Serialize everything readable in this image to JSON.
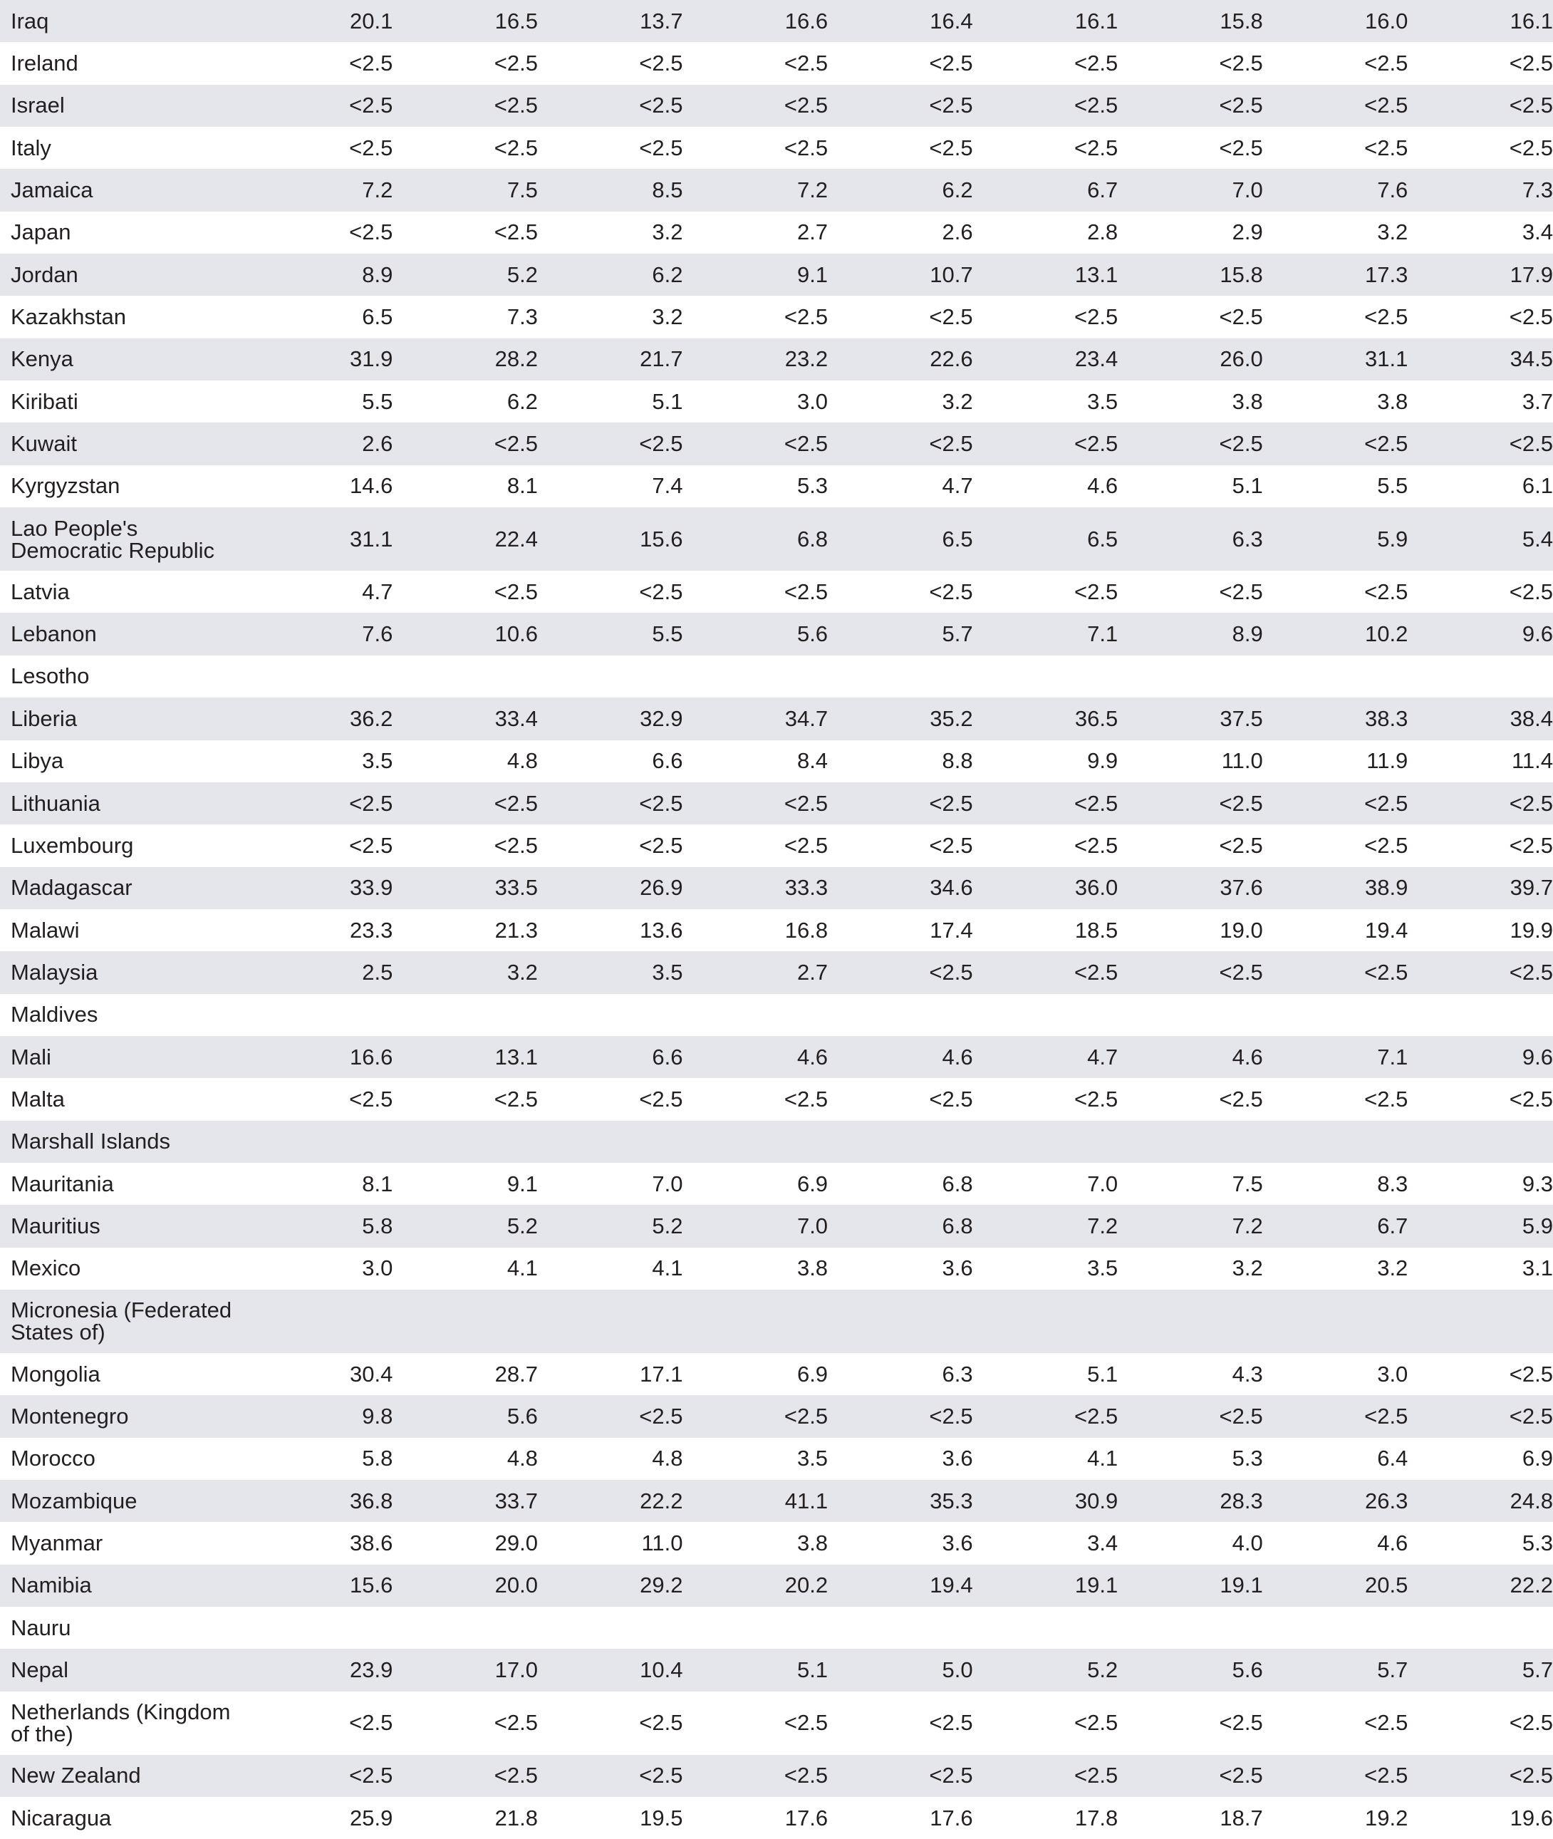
{
  "table": {
    "rows": [
      {
        "country": "Iraq",
        "values": [
          "20.1",
          "16.5",
          "13.7",
          "16.6",
          "16.4",
          "16.1",
          "15.8",
          "16.0",
          "16.1"
        ]
      },
      {
        "country": "Ireland",
        "values": [
          "<2.5",
          "<2.5",
          "<2.5",
          "<2.5",
          "<2.5",
          "<2.5",
          "<2.5",
          "<2.5",
          "<2.5"
        ]
      },
      {
        "country": "Israel",
        "values": [
          "<2.5",
          "<2.5",
          "<2.5",
          "<2.5",
          "<2.5",
          "<2.5",
          "<2.5",
          "<2.5",
          "<2.5"
        ]
      },
      {
        "country": "Italy",
        "values": [
          "<2.5",
          "<2.5",
          "<2.5",
          "<2.5",
          "<2.5",
          "<2.5",
          "<2.5",
          "<2.5",
          "<2.5"
        ]
      },
      {
        "country": "Jamaica",
        "values": [
          "7.2",
          "7.5",
          "8.5",
          "7.2",
          "6.2",
          "6.7",
          "7.0",
          "7.6",
          "7.3"
        ]
      },
      {
        "country": "Japan",
        "values": [
          "<2.5",
          "<2.5",
          "3.2",
          "2.7",
          "2.6",
          "2.8",
          "2.9",
          "3.2",
          "3.4"
        ]
      },
      {
        "country": "Jordan",
        "values": [
          "8.9",
          "5.2",
          "6.2",
          "9.1",
          "10.7",
          "13.1",
          "15.8",
          "17.3",
          "17.9"
        ]
      },
      {
        "country": "Kazakhstan",
        "values": [
          "6.5",
          "7.3",
          "3.2",
          "<2.5",
          "<2.5",
          "<2.5",
          "<2.5",
          "<2.5",
          "<2.5"
        ]
      },
      {
        "country": "Kenya",
        "values": [
          "31.9",
          "28.2",
          "21.7",
          "23.2",
          "22.6",
          "23.4",
          "26.0",
          "31.1",
          "34.5"
        ]
      },
      {
        "country": "Kiribati",
        "values": [
          "5.5",
          "6.2",
          "5.1",
          "3.0",
          "3.2",
          "3.5",
          "3.8",
          "3.8",
          "3.7"
        ]
      },
      {
        "country": "Kuwait",
        "values": [
          "2.6",
          "<2.5",
          "<2.5",
          "<2.5",
          "<2.5",
          "<2.5",
          "<2.5",
          "<2.5",
          "<2.5"
        ]
      },
      {
        "country": "Kyrgyzstan",
        "values": [
          "14.6",
          "8.1",
          "7.4",
          "5.3",
          "4.7",
          "4.6",
          "5.1",
          "5.5",
          "6.1"
        ]
      },
      {
        "country": "Lao People's Democratic Republic",
        "values": [
          "31.1",
          "22.4",
          "15.6",
          "6.8",
          "6.5",
          "6.5",
          "6.3",
          "5.9",
          "5.4"
        ]
      },
      {
        "country": "Latvia",
        "values": [
          "4.7",
          "<2.5",
          "<2.5",
          "<2.5",
          "<2.5",
          "<2.5",
          "<2.5",
          "<2.5",
          "<2.5"
        ]
      },
      {
        "country": "Lebanon",
        "values": [
          "7.6",
          "10.6",
          "5.5",
          "5.6",
          "5.7",
          "7.1",
          "8.9",
          "10.2",
          "9.6"
        ]
      },
      {
        "country": "Lesotho",
        "values": [
          "",
          "",
          "",
          "",
          "",
          "",
          "",
          "",
          ""
        ]
      },
      {
        "country": "Liberia",
        "values": [
          "36.2",
          "33.4",
          "32.9",
          "34.7",
          "35.2",
          "36.5",
          "37.5",
          "38.3",
          "38.4"
        ]
      },
      {
        "country": "Libya",
        "values": [
          "3.5",
          "4.8",
          "6.6",
          "8.4",
          "8.8",
          "9.9",
          "11.0",
          "11.9",
          "11.4"
        ]
      },
      {
        "country": "Lithuania",
        "values": [
          "<2.5",
          "<2.5",
          "<2.5",
          "<2.5",
          "<2.5",
          "<2.5",
          "<2.5",
          "<2.5",
          "<2.5"
        ]
      },
      {
        "country": "Luxembourg",
        "values": [
          "<2.5",
          "<2.5",
          "<2.5",
          "<2.5",
          "<2.5",
          "<2.5",
          "<2.5",
          "<2.5",
          "<2.5"
        ]
      },
      {
        "country": "Madagascar",
        "values": [
          "33.9",
          "33.5",
          "26.9",
          "33.3",
          "34.6",
          "36.0",
          "37.6",
          "38.9",
          "39.7"
        ]
      },
      {
        "country": "Malawi",
        "values": [
          "23.3",
          "21.3",
          "13.6",
          "16.8",
          "17.4",
          "18.5",
          "19.0",
          "19.4",
          "19.9"
        ]
      },
      {
        "country": "Malaysia",
        "values": [
          "2.5",
          "3.2",
          "3.5",
          "2.7",
          "<2.5",
          "<2.5",
          "<2.5",
          "<2.5",
          "<2.5"
        ]
      },
      {
        "country": "Maldives",
        "values": [
          "",
          "",
          "",
          "",
          "",
          "",
          "",
          "",
          ""
        ]
      },
      {
        "country": "Mali",
        "values": [
          "16.6",
          "13.1",
          "6.6",
          "4.6",
          "4.6",
          "4.7",
          "4.6",
          "7.1",
          "9.6"
        ]
      },
      {
        "country": "Malta",
        "values": [
          "<2.5",
          "<2.5",
          "<2.5",
          "<2.5",
          "<2.5",
          "<2.5",
          "<2.5",
          "<2.5",
          "<2.5"
        ]
      },
      {
        "country": "Marshall Islands",
        "values": [
          "",
          "",
          "",
          "",
          "",
          "",
          "",
          "",
          ""
        ]
      },
      {
        "country": "Mauritania",
        "values": [
          "8.1",
          "9.1",
          "7.0",
          "6.9",
          "6.8",
          "7.0",
          "7.5",
          "8.3",
          "9.3"
        ]
      },
      {
        "country": "Mauritius",
        "values": [
          "5.8",
          "5.2",
          "5.2",
          "7.0",
          "6.8",
          "7.2",
          "7.2",
          "6.7",
          "5.9"
        ]
      },
      {
        "country": "Mexico",
        "values": [
          "3.0",
          "4.1",
          "4.1",
          "3.8",
          "3.6",
          "3.5",
          "3.2",
          "3.2",
          "3.1"
        ]
      },
      {
        "country": "Micronesia (Federated States of)",
        "values": [
          "",
          "",
          "",
          "",
          "",
          "",
          "",
          "",
          ""
        ]
      },
      {
        "country": "Mongolia",
        "values": [
          "30.4",
          "28.7",
          "17.1",
          "6.9",
          "6.3",
          "5.1",
          "4.3",
          "3.0",
          "<2.5"
        ]
      },
      {
        "country": "Montenegro",
        "values": [
          "9.8",
          "5.6",
          "<2.5",
          "<2.5",
          "<2.5",
          "<2.5",
          "<2.5",
          "<2.5",
          "<2.5"
        ]
      },
      {
        "country": "Morocco",
        "values": [
          "5.8",
          "4.8",
          "4.8",
          "3.5",
          "3.6",
          "4.1",
          "5.3",
          "6.4",
          "6.9"
        ]
      },
      {
        "country": "Mozambique",
        "values": [
          "36.8",
          "33.7",
          "22.2",
          "41.1",
          "35.3",
          "30.9",
          "28.3",
          "26.3",
          "24.8"
        ]
      },
      {
        "country": "Myanmar",
        "values": [
          "38.6",
          "29.0",
          "11.0",
          "3.8",
          "3.6",
          "3.4",
          "4.0",
          "4.6",
          "5.3"
        ]
      },
      {
        "country": "Namibia",
        "values": [
          "15.6",
          "20.0",
          "29.2",
          "20.2",
          "19.4",
          "19.1",
          "19.1",
          "20.5",
          "22.2"
        ]
      },
      {
        "country": "Nauru",
        "values": [
          "",
          "",
          "",
          "",
          "",
          "",
          "",
          "",
          ""
        ]
      },
      {
        "country": "Nepal",
        "values": [
          "23.9",
          "17.0",
          "10.4",
          "5.1",
          "5.0",
          "5.2",
          "5.6",
          "5.7",
          "5.7"
        ]
      },
      {
        "country": "Netherlands (Kingdom of the)",
        "values": [
          "<2.5",
          "<2.5",
          "<2.5",
          "<2.5",
          "<2.5",
          "<2.5",
          "<2.5",
          "<2.5",
          "<2.5"
        ]
      },
      {
        "country": "New Zealand",
        "values": [
          "<2.5",
          "<2.5",
          "<2.5",
          "<2.5",
          "<2.5",
          "<2.5",
          "<2.5",
          "<2.5",
          "<2.5"
        ]
      },
      {
        "country": "Nicaragua",
        "values": [
          "25.9",
          "21.8",
          "19.5",
          "17.6",
          "17.6",
          "17.8",
          "18.7",
          "19.2",
          "19.6"
        ]
      }
    ]
  }
}
